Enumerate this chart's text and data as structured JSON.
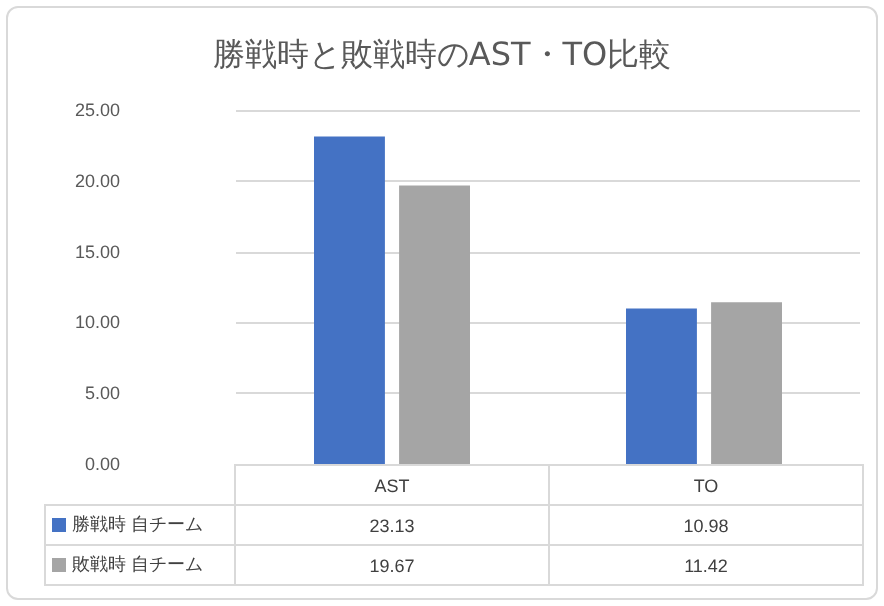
{
  "chart_data": {
    "type": "bar",
    "title": "勝戦時と敗戦時のAST・TO比較",
    "categories": [
      "AST",
      "TO"
    ],
    "series": [
      {
        "name": "勝戦時 自チーム",
        "color": "#4472c4",
        "values": [
          23.13,
          10.98
        ]
      },
      {
        "name": "敗戦時 自チーム",
        "color": "#a5a5a5",
        "values": [
          19.67,
          11.42
        ]
      }
    ],
    "ylim": [
      0,
      25
    ],
    "yticks": [
      {
        "value": 0,
        "label": "0.00"
      },
      {
        "value": 5,
        "label": "5.00"
      },
      {
        "value": 10,
        "label": "10.00"
      },
      {
        "value": 15,
        "label": "15.00"
      },
      {
        "value": 20,
        "label": "20.00"
      },
      {
        "value": 25,
        "label": "25.00"
      }
    ],
    "grid": "y",
    "legend": "bottom",
    "data_labels": true
  }
}
